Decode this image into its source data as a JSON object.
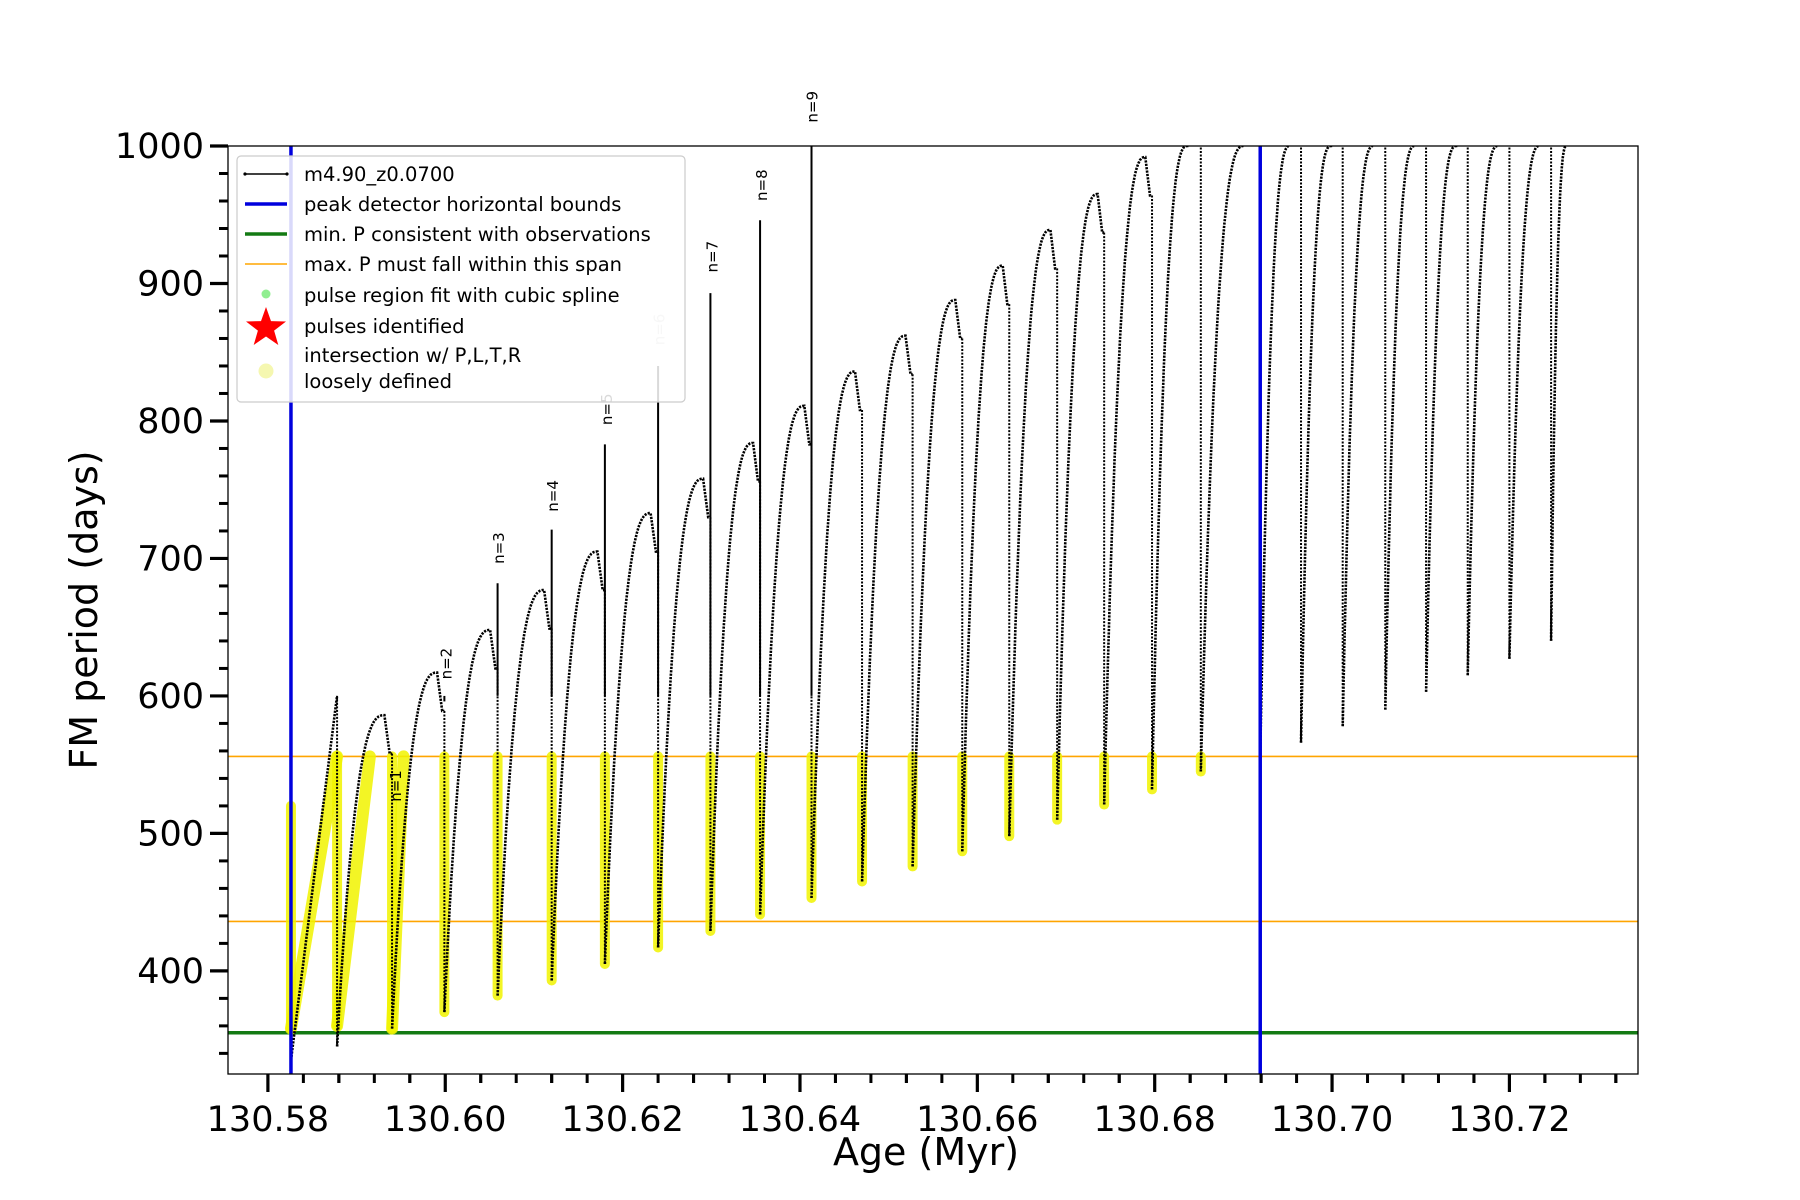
{
  "chart_data": {
    "type": "line",
    "xlabel": "Age (Myr)",
    "ylabel": "FM period (days)",
    "xlim": [
      130.5755,
      130.7345
    ],
    "ylim": [
      325,
      1000
    ],
    "xticks": [
      130.58,
      130.6,
      130.62,
      130.64,
      130.66,
      130.68,
      130.7,
      130.72
    ],
    "xtick_labels": [
      "130.58",
      "130.60",
      "130.62",
      "130.64",
      "130.66",
      "130.68",
      "130.70",
      "130.72"
    ],
    "yticks": [
      400,
      500,
      600,
      700,
      800,
      900,
      1000
    ],
    "ytick_labels": [
      "400",
      "500",
      "600",
      "700",
      "800",
      "900",
      "1000"
    ],
    "grid": false,
    "legend_placement": "top-left",
    "legend": [
      {
        "label": "m4.90_z0.0700",
        "kind": "line-dots",
        "color": "#000000"
      },
      {
        "label": "peak detector horizontal bounds",
        "kind": "line",
        "color": "#0000dd"
      },
      {
        "label": "min. P consistent with observations",
        "kind": "line",
        "color": "#137a13"
      },
      {
        "label": "max. P must fall within this span",
        "kind": "thin-line",
        "color": "#ffa500"
      },
      {
        "label": "pulse region fit with cubic spline",
        "kind": "dot",
        "color": "#90ee90"
      },
      {
        "label": "pulses identified",
        "kind": "star",
        "color": "#ff0000"
      },
      {
        "label": "intersection w/ P,L,T,R\nloosely defined",
        "kind": "circle",
        "color": "#f5f7b0"
      }
    ],
    "vertical_bounds": [
      130.5826,
      130.6919
    ],
    "min_period": 355,
    "max_period_span": [
      436,
      556
    ],
    "series_name": "m4.90_z0.0700",
    "pulses": [
      {
        "t": 130.5826,
        "peak": null,
        "min": 335,
        "hl": [
          358,
          520
        ]
      },
      {
        "t": 130.5878,
        "peak": 586,
        "min": 345,
        "hl": [
          360,
          556
        ]
      },
      {
        "t": 130.594,
        "peak": 617,
        "min": 358,
        "hl": [
          358,
          556
        ]
      },
      {
        "t": 130.5999,
        "peak": 648,
        "min": 370,
        "hl": [
          370,
          556
        ]
      },
      {
        "t": 130.6059,
        "peak": 677,
        "min": 382,
        "hl": [
          382,
          556
        ]
      },
      {
        "t": 130.612,
        "peak": 705,
        "min": 393,
        "hl": [
          393,
          556
        ]
      },
      {
        "t": 130.618,
        "peak": 733,
        "min": 405,
        "hl": [
          405,
          556
        ]
      },
      {
        "t": 130.624,
        "peak": 758,
        "min": 417,
        "hl": [
          417,
          556
        ]
      },
      {
        "t": 130.6299,
        "peak": 784,
        "min": 429,
        "hl": [
          429,
          556
        ]
      },
      {
        "t": 130.6355,
        "peak": 811,
        "min": 441,
        "hl": [
          441,
          556
        ]
      },
      {
        "t": 130.6413,
        "peak": 836,
        "min": 453,
        "hl": [
          453,
          556
        ]
      },
      {
        "t": 130.647,
        "peak": 862,
        "min": 465,
        "hl": [
          465,
          556
        ]
      },
      {
        "t": 130.6527,
        "peak": 888,
        "min": 476,
        "hl": [
          476,
          556
        ]
      },
      {
        "t": 130.6583,
        "peak": 913,
        "min": 487,
        "hl": [
          487,
          556
        ]
      },
      {
        "t": 130.6636,
        "peak": 939,
        "min": 498,
        "hl": [
          498,
          556
        ]
      },
      {
        "t": 130.669,
        "peak": 965,
        "min": 510,
        "hl": [
          510,
          556
        ]
      },
      {
        "t": 130.6743,
        "peak": 992,
        "min": 521,
        "hl": [
          521,
          556
        ]
      },
      {
        "t": 130.6797,
        "peak": 1000,
        "min": 532,
        "hl": [
          532,
          556
        ]
      },
      {
        "t": 130.6852,
        "peak": 1000,
        "min": 545,
        "hl": [
          545,
          556
        ]
      },
      {
        "t": 130.6919,
        "peak": 1000,
        "min": 555,
        "hl": null
      },
      {
        "t": 130.6965,
        "peak": 1000,
        "min": 566,
        "hl": null
      },
      {
        "t": 130.7012,
        "peak": 1000,
        "min": 578,
        "hl": null
      },
      {
        "t": 130.706,
        "peak": 1000,
        "min": 590,
        "hl": null
      },
      {
        "t": 130.7106,
        "peak": 1000,
        "min": 603,
        "hl": null
      },
      {
        "t": 130.7153,
        "peak": 1000,
        "min": 615,
        "hl": null
      },
      {
        "t": 130.72,
        "peak": 1000,
        "min": 627,
        "hl": null
      },
      {
        "t": 130.7247,
        "peak": 1000,
        "min": 640,
        "hl": null
      }
    ],
    "spikes": [
      {
        "t": 130.5999,
        "top": 596,
        "label": "n=2"
      },
      {
        "t": 130.6059,
        "top": 682,
        "label": "n=3"
      },
      {
        "t": 130.612,
        "top": 721,
        "label": "n=4"
      },
      {
        "t": 130.618,
        "top": 783,
        "label": "n=5"
      },
      {
        "t": 130.624,
        "top": 840,
        "label": "n=6"
      },
      {
        "t": 130.6299,
        "top": 893,
        "label": "n=7"
      },
      {
        "t": 130.6355,
        "top": 946,
        "label": "n=8"
      },
      {
        "t": 130.6413,
        "top": 1000,
        "label": "n=9"
      }
    ],
    "annotations": [
      {
        "text": "n=1",
        "x": 130.595,
        "y": 523
      },
      {
        "text": "n=2",
        "x": 130.6007,
        "y": 612
      },
      {
        "text": "n=3",
        "x": 130.6066,
        "y": 696
      },
      {
        "text": "n=4",
        "x": 130.6127,
        "y": 734
      },
      {
        "text": "n=5",
        "x": 130.6188,
        "y": 797
      },
      {
        "text": "n=6",
        "x": 130.6247,
        "y": 855
      },
      {
        "text": "n=7",
        "x": 130.6307,
        "y": 908
      },
      {
        "text": "n=8",
        "x": 130.6363,
        "y": 960
      },
      {
        "text": "n=9",
        "x": 130.642,
        "y": 1017
      }
    ]
  }
}
